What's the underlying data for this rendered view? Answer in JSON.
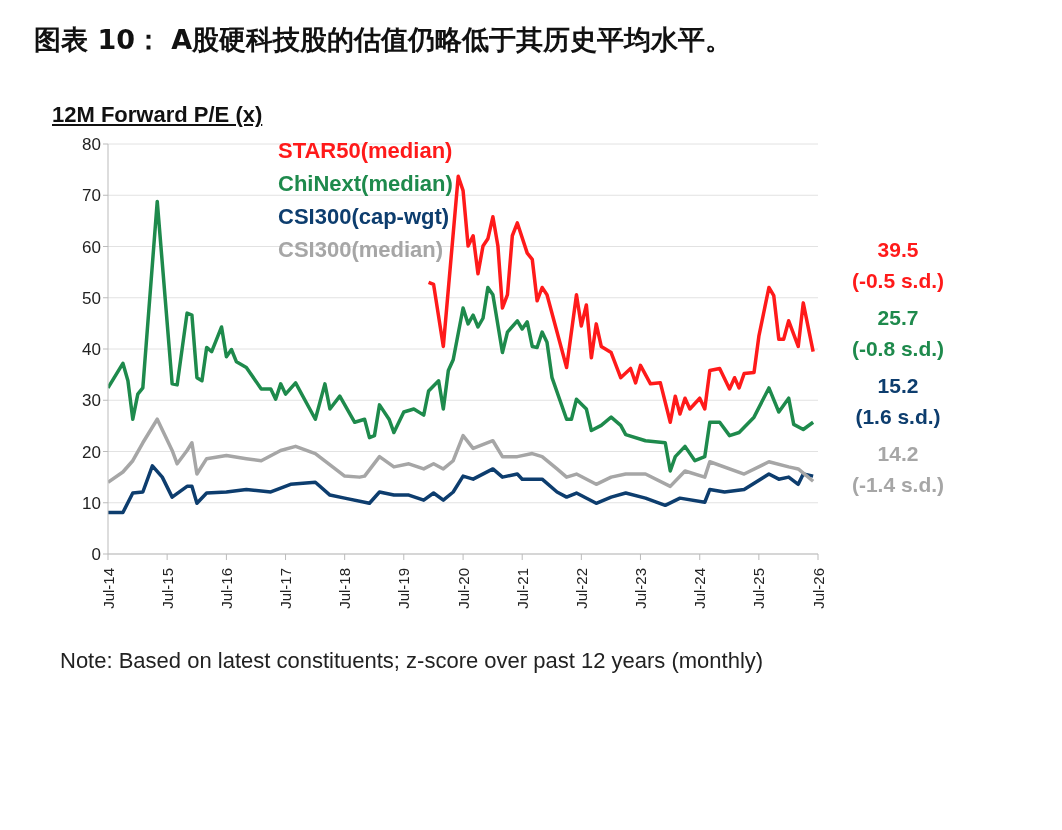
{
  "chart_data": {
    "type": "line",
    "title": "图表 10： A股硬科技股的估值仍略低于其历史平均水平。",
    "ylabel": "12M Forward P/E (x)",
    "annotations": [
      "39.5 (-0.5 s.d.)",
      "25.7 (-0.8 s.d.)",
      "15.2 (1.6 s.d.)",
      "14.2 (-1.4 s.d.)",
      "Note: Based on latest constituents; z-score over past 12 years (monthly)"
    ],
    "xlim": [
      "2014-07",
      "2026-07"
    ],
    "xticks": [
      {
        "value": "2014-07",
        "label": "Jul-14"
      },
      {
        "value": "2015-07",
        "label": "Jul-15"
      },
      {
        "value": "2016-07",
        "label": "Jul-16"
      },
      {
        "value": "2017-07",
        "label": "Jul-17"
      },
      {
        "value": "2018-07",
        "label": "Jul-18"
      },
      {
        "value": "2019-07",
        "label": "Jul-19"
      },
      {
        "value": "2020-07",
        "label": "Jul-20"
      },
      {
        "value": "2021-07",
        "label": "Jul-21"
      },
      {
        "value": "2022-07",
        "label": "Jul-22"
      },
      {
        "value": "2023-07",
        "label": "Jul-23"
      },
      {
        "value": "2024-07",
        "label": "Jul-24"
      },
      {
        "value": "2025-07",
        "label": "Jul-25"
      },
      {
        "value": "2026-07",
        "label": "Jul-26"
      }
    ],
    "ylim": [
      0,
      80
    ],
    "yticks": [
      0,
      10,
      20,
      30,
      40,
      50,
      60,
      70,
      80
    ],
    "grid": "y",
    "legend": "top left",
    "marker": "none",
    "line_style": "solid",
    "series": [
      {
        "name": "STAR50(median)",
        "color": "#ff1a1a",
        "x": [
          "2019-12",
          "2020-01",
          "2020-03",
          "2020-06",
          "2020-07",
          "2020-08",
          "2020-09",
          "2020-10",
          "2020-11",
          "2020-12",
          "2021-01",
          "2021-02",
          "2021-03",
          "2021-04",
          "2021-05",
          "2021-06",
          "2021-08",
          "2021-09",
          "2021-10",
          "2021-11",
          "2021-12",
          "2022-04",
          "2022-06",
          "2022-07",
          "2022-08",
          "2022-09",
          "2022-10",
          "2022-11",
          "2023-01",
          "2023-03",
          "2023-05",
          "2023-06",
          "2023-07",
          "2023-09",
          "2023-11",
          "2024-01",
          "2024-02",
          "2024-03",
          "2024-04",
          "2024-05",
          "2024-07",
          "2024-08",
          "2024-09",
          "2024-11",
          "2025-01",
          "2025-02",
          "2025-03",
          "2025-04",
          "2025-06",
          "2025-07",
          "2025-09",
          "2025-10",
          "2025-11",
          "2025-12",
          "2026-01",
          "2026-03",
          "2026-04",
          "2026-06"
        ],
        "values": [
          53,
          52.6,
          40.5,
          73.7,
          70.9,
          60.1,
          62.1,
          54.7,
          60.1,
          61.5,
          65.8,
          60.1,
          48,
          50.6,
          62.1,
          64.6,
          58.7,
          57.5,
          49.4,
          52,
          50.6,
          36.4,
          50.6,
          44.5,
          48.6,
          38.3,
          44.9,
          40.5,
          39.3,
          34.4,
          36.2,
          33.4,
          36.8,
          33.2,
          33.4,
          25.7,
          30.8,
          27.3,
          30.4,
          28.3,
          30.4,
          28.3,
          35.8,
          36.2,
          32.2,
          34.4,
          32.4,
          35.2,
          35.4,
          42.5,
          52,
          50.4,
          41.9,
          41.9,
          45.5,
          40.5,
          49,
          39.5
        ]
      },
      {
        "name": "ChiNext(median)",
        "color": "#1e8a4c",
        "x": [
          "2014-07",
          "2014-10",
          "2014-11",
          "2014-12",
          "2015-01",
          "2015-02",
          "2015-05",
          "2015-08",
          "2015-09",
          "2015-11",
          "2015-12",
          "2016-01",
          "2016-02",
          "2016-03",
          "2016-04",
          "2016-06",
          "2016-07",
          "2016-08",
          "2016-09",
          "2016-11",
          "2017-02",
          "2017-04",
          "2017-05",
          "2017-06",
          "2017-07",
          "2017-09",
          "2018-01",
          "2018-03",
          "2018-04",
          "2018-06",
          "2018-09",
          "2018-11",
          "2018-12",
          "2019-01",
          "2019-02",
          "2019-04",
          "2019-05",
          "2019-07",
          "2019-09",
          "2019-11",
          "2019-12",
          "2020-02",
          "2020-03",
          "2020-04",
          "2020-05",
          "2020-07",
          "2020-08",
          "2020-09",
          "2020-10",
          "2020-11",
          "2020-12",
          "2021-01",
          "2021-03",
          "2021-04",
          "2021-06",
          "2021-07",
          "2021-08",
          "2021-09",
          "2021-10",
          "2021-11",
          "2021-12",
          "2022-01",
          "2022-04",
          "2022-05",
          "2022-06",
          "2022-08",
          "2022-09",
          "2022-11",
          "2023-01",
          "2023-03",
          "2023-04",
          "2023-08",
          "2023-12",
          "2024-01",
          "2024-02",
          "2024-04",
          "2024-06",
          "2024-08",
          "2024-09",
          "2024-11",
          "2025-01",
          "2025-03",
          "2025-06",
          "2025-09",
          "2025-11",
          "2026-01",
          "2026-02",
          "2026-04",
          "2026-06"
        ],
        "values": [
          32.4,
          37.2,
          33.8,
          26.3,
          31.2,
          32.4,
          68.8,
          33.2,
          33,
          47,
          46.6,
          34.4,
          33.8,
          40.3,
          39.5,
          44.3,
          38.5,
          39.9,
          37.5,
          36.4,
          32.2,
          32.2,
          30.2,
          33.2,
          31.2,
          33.4,
          26.3,
          33.2,
          28.3,
          30.8,
          25.7,
          26.3,
          22.7,
          23.1,
          29.1,
          26.3,
          23.7,
          27.7,
          28.3,
          27.1,
          31.8,
          33.8,
          28.3,
          35.8,
          37.9,
          48,
          44.9,
          46.6,
          44.3,
          46,
          52,
          50.6,
          39.3,
          43.3,
          45.5,
          43.9,
          45.3,
          40.5,
          40.3,
          43.3,
          41.3,
          34.4,
          26.3,
          26.3,
          30.2,
          28.3,
          24.1,
          25.1,
          26.7,
          25.1,
          23.3,
          22.1,
          21.7,
          16.2,
          19,
          21,
          18.2,
          19,
          25.7,
          25.7,
          23.1,
          23.7,
          26.7,
          32.4,
          27.7,
          30.4,
          25.3,
          24.3,
          25.7
        ]
      },
      {
        "name": "CSI300(cap-wgt)",
        "color": "#0d3d6e",
        "x": [
          "2014-07",
          "2014-10",
          "2014-12",
          "2015-02",
          "2015-04",
          "2015-06",
          "2015-08",
          "2015-11",
          "2015-12",
          "2016-01",
          "2016-03",
          "2016-07",
          "2016-11",
          "2017-04",
          "2017-08",
          "2018-01",
          "2018-04",
          "2018-07",
          "2018-12",
          "2019-02",
          "2019-05",
          "2019-08",
          "2019-11",
          "2020-01",
          "2020-03",
          "2020-05",
          "2020-07",
          "2020-09",
          "2021-01",
          "2021-03",
          "2021-06",
          "2021-07",
          "2021-11",
          "2022-02",
          "2022-04",
          "2022-06",
          "2022-10",
          "2023-01",
          "2023-04",
          "2023-08",
          "2023-12",
          "2024-03",
          "2024-08",
          "2024-09",
          "2024-12",
          "2025-04",
          "2025-09",
          "2025-11",
          "2026-01",
          "2026-03",
          "2026-04",
          "2026-06"
        ],
        "values": [
          8.1,
          8.1,
          11.9,
          12.1,
          17.2,
          15,
          11.1,
          13.2,
          13.2,
          9.9,
          11.9,
          12.1,
          12.6,
          12.1,
          13.6,
          14,
          11.5,
          10.9,
          9.9,
          12.1,
          11.5,
          11.5,
          10.5,
          11.9,
          10.5,
          12.1,
          15.2,
          14.6,
          16.6,
          15,
          15.6,
          14.6,
          14.6,
          12.1,
          11.1,
          11.9,
          9.9,
          11.1,
          11.9,
          10.9,
          9.5,
          10.9,
          10.1,
          12.6,
          12.1,
          12.6,
          15.6,
          14.6,
          15,
          13.6,
          15.6,
          15.2
        ]
      },
      {
        "name": "CSI300(median)",
        "color": "#a6a6a6",
        "x": [
          "2014-07",
          "2014-10",
          "2014-12",
          "2015-02",
          "2015-05",
          "2015-08",
          "2015-09",
          "2015-11",
          "2015-12",
          "2016-01",
          "2016-03",
          "2016-07",
          "2016-11",
          "2017-02",
          "2017-06",
          "2017-09",
          "2018-01",
          "2018-07",
          "2018-10",
          "2018-11",
          "2019-02",
          "2019-05",
          "2019-08",
          "2019-11",
          "2020-01",
          "2020-03",
          "2020-05",
          "2020-07",
          "2020-09",
          "2021-01",
          "2021-03",
          "2021-06",
          "2021-09",
          "2021-11",
          "2022-02",
          "2022-04",
          "2022-06",
          "2022-10",
          "2023-01",
          "2023-04",
          "2023-08",
          "2024-01",
          "2024-04",
          "2024-08",
          "2024-09",
          "2025-04",
          "2025-09",
          "2026-01",
          "2026-03",
          "2026-06"
        ],
        "values": [
          14,
          16,
          18.2,
          21.7,
          26.3,
          20.2,
          17.6,
          20.2,
          21.7,
          15.6,
          18.6,
          19.2,
          18.6,
          18.2,
          20.2,
          21,
          19.6,
          15.2,
          15,
          15.2,
          19,
          17,
          17.6,
          16.6,
          17.6,
          16.6,
          18.2,
          23.1,
          20.6,
          22.1,
          19,
          19,
          19.6,
          19,
          16.6,
          15,
          15.6,
          13.6,
          15,
          15.6,
          15.6,
          13.2,
          16.2,
          15,
          18,
          15.6,
          18,
          17,
          16.6,
          14.2
        ]
      }
    ]
  }
}
